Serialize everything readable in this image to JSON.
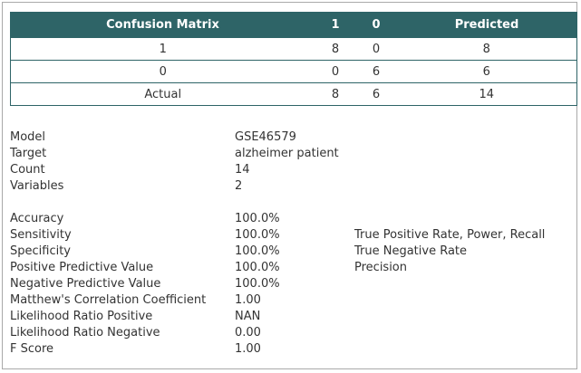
{
  "matrix": {
    "header": {
      "title": "Confusion Matrix",
      "col1": "1",
      "col0": "0",
      "predicted": "Predicted"
    },
    "rows": [
      {
        "label": "1",
        "c1": "8",
        "c0": "0",
        "total": "8"
      },
      {
        "label": "0",
        "c1": "0",
        "c0": "6",
        "total": "6"
      },
      {
        "label": "Actual",
        "c1": "8",
        "c0": "6",
        "total": "14"
      }
    ]
  },
  "info": [
    {
      "label": "Model",
      "value": "GSE46579"
    },
    {
      "label": "Target",
      "value": "alzheimer patient"
    },
    {
      "label": "Count",
      "value": "14"
    },
    {
      "label": "Variables",
      "value": "2"
    }
  ],
  "metrics": [
    {
      "label": "Accuracy",
      "value": "100.0%",
      "note": ""
    },
    {
      "label": "Sensitivity",
      "value": "100.0%",
      "note": "True Positive Rate, Power, Recall"
    },
    {
      "label": "Specificity",
      "value": "100.0%",
      "note": "True Negative Rate"
    },
    {
      "label": "Positive Predictive Value",
      "value": "100.0%",
      "note": "Precision"
    },
    {
      "label": "Negative Predictive Value",
      "value": "100.0%",
      "note": ""
    },
    {
      "label": "Matthew's Correlation Coefficient",
      "value": "1.00",
      "note": ""
    },
    {
      "label": "Likelihood Ratio Positive",
      "value": "NAN",
      "note": ""
    },
    {
      "label": "Likelihood Ratio Negative",
      "value": "0.00",
      "note": ""
    },
    {
      "label": "F Score",
      "value": "1.00",
      "note": ""
    }
  ],
  "colors": {
    "header_bg": "#2e6467",
    "text": "#333333",
    "frame_border": "#a9a9a9"
  }
}
